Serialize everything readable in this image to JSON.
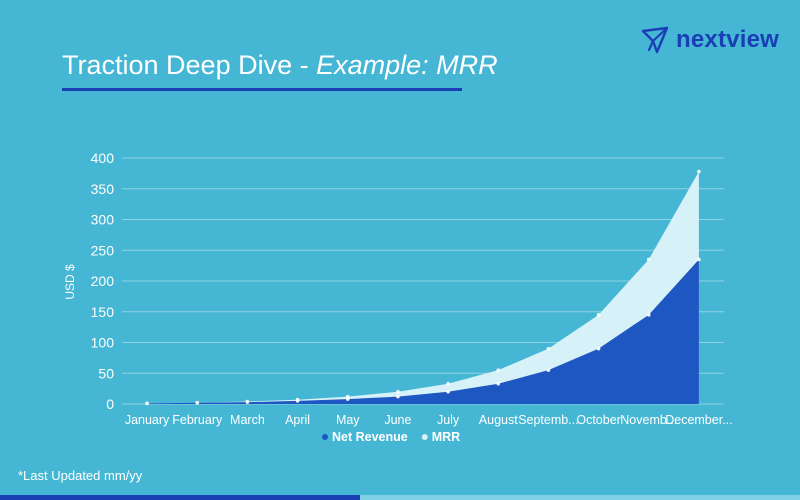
{
  "header": {
    "title_main": "Traction Deep Dive - ",
    "title_emphasis": "Example: MRR",
    "brand_name": "nextview"
  },
  "footnote": "*Last Updated mm/yy",
  "colors": {
    "background": "#45b7d4",
    "net_revenue": "#1f57c2",
    "mrr": "#d6f1f8",
    "brand": "#1a3fb5",
    "grid": "#8fd2e4",
    "text": "#ffffff"
  },
  "chart_data": {
    "type": "area",
    "title": "",
    "xlabel": "",
    "ylabel": "USD $",
    "ylim": [
      0,
      400
    ],
    "yticks": [
      0,
      50,
      100,
      150,
      200,
      250,
      300,
      350,
      400
    ],
    "grid": true,
    "legend_position": "bottom-center",
    "categories": [
      "January",
      "February",
      "March",
      "April",
      "May",
      "June",
      "July",
      "August",
      "Septemb...",
      "October",
      "Novemb...",
      "December..."
    ],
    "series": [
      {
        "name": "Net Revenue",
        "color": "#1f57c2",
        "values": [
          1,
          2,
          3,
          5,
          8,
          12,
          20,
          33,
          55,
          90,
          145,
          235
        ]
      },
      {
        "name": "MRR",
        "color": "#d6f1f8",
        "values": [
          1,
          2,
          4,
          7,
          12,
          20,
          33,
          55,
          90,
          145,
          235,
          378
        ]
      }
    ]
  }
}
